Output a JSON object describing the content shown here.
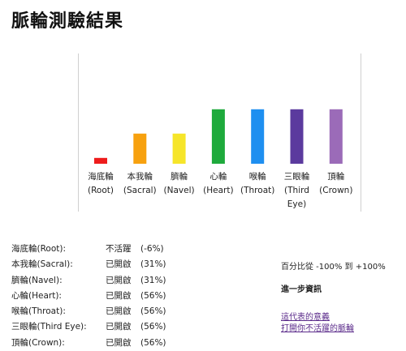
{
  "page": {
    "title": "脈輪測驗結果"
  },
  "chart_data": {
    "type": "bar",
    "categories": [
      "海底輪\n(Root)",
      "本我輪\n(Sacral)",
      "臍輪\n(Navel)",
      "心輪\n(Heart)",
      "喉輪\n(Throat)",
      "三眼輪\n(Third\nEye)",
      "頂輪\n(Crown)"
    ],
    "values": [
      -6,
      31,
      31,
      56,
      56,
      56,
      56
    ],
    "colors": [
      "#ee1c1c",
      "#f7a10f",
      "#f6e52a",
      "#1eaa3c",
      "#1e8ff0",
      "#5b3a9e",
      "#9b6bb8"
    ],
    "ylim": [
      -100,
      100
    ],
    "title": "",
    "xlabel": "",
    "ylabel": ""
  },
  "summary": {
    "rows": [
      {
        "name": "海底輪(Root):",
        "status": "不活躍",
        "pct": "(-6%)"
      },
      {
        "name": "本我輪(Sacral):",
        "status": "已開啟",
        "pct": "(31%)"
      },
      {
        "name": "臍輪(Navel):",
        "status": "已開啟",
        "pct": "(31%)"
      },
      {
        "name": "心輪(Heart):",
        "status": "已開啟",
        "pct": "(56%)"
      },
      {
        "name": "喉輪(Throat):",
        "status": "已開啟",
        "pct": "(56%)"
      },
      {
        "name": "三眼輪(Third Eye):",
        "status": "已開啟",
        "pct": "(56%)"
      },
      {
        "name": "頂輪(Crown):",
        "status": "已開啟",
        "pct": "(56%)"
      }
    ]
  },
  "info": {
    "range_note": "百分比從 -100% 到 +100%",
    "more_heading": "進一步資訊",
    "link_meaning": "這代表的意義",
    "link_open": "打開你不活躍的脈輪"
  }
}
